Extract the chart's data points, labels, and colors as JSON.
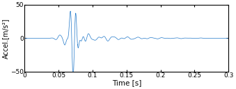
{
  "title": "",
  "xlabel": "Time [s]",
  "ylabel": "Accel.[m/s²]",
  "xlim": [
    0,
    0.3
  ],
  "ylim": [
    -50,
    50
  ],
  "xticks": [
    0,
    0.05,
    0.1,
    0.15,
    0.2,
    0.25,
    0.3
  ],
  "yticks": [
    -50,
    0,
    50
  ],
  "line_color": "#1f77c9",
  "line_width": 0.5,
  "signal_duration": 0.3,
  "fs": 10000,
  "background_color": "#ffffff"
}
